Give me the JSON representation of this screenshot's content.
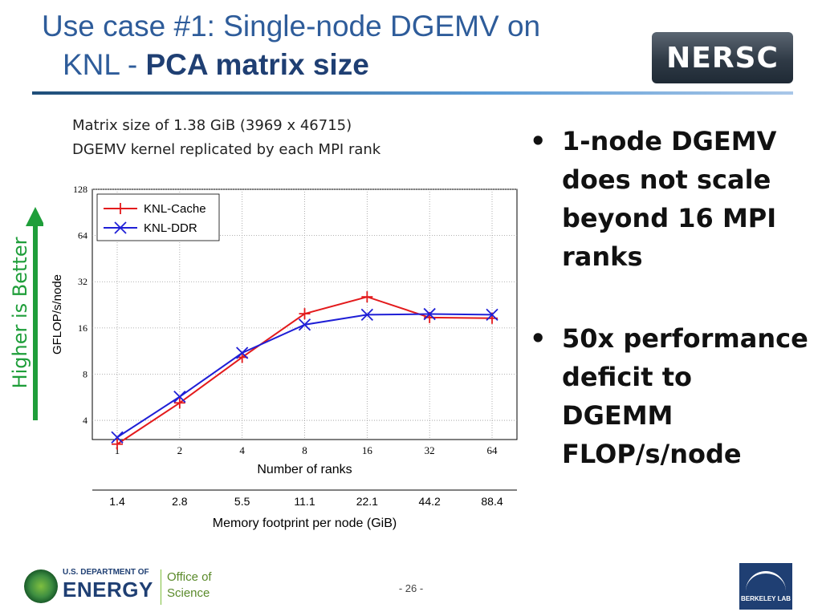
{
  "title": {
    "line1": "Use case #1: Single-node DGEMV on",
    "line2_prefix": "KNL - ",
    "line2_bold": "PCA matrix size"
  },
  "logos": {
    "nersc": "NERSC",
    "doe_department": "U.S. DEPARTMENT OF",
    "doe_energy": "ENERGY",
    "office_line1": "Office of",
    "office_line2": "Science",
    "berkeley_lab": "BERKELEY LAB"
  },
  "caption": {
    "line1": "Matrix size of 1.38 GiB (3969 x 46715)",
    "line2": "DGEMV kernel replicated by each MPI rank"
  },
  "side_label": "Higher is Better",
  "bullets": [
    "1-node DGEMV does not scale beyond 16 MPI ranks",
    "50x performance deficit to DGEMM FLOP/s/node"
  ],
  "bullet_symbol": "•",
  "page_number": "- 26 -",
  "colors": {
    "title": "#2e5c9a",
    "knl_cache": "#e31a1c",
    "knl_ddr": "#1f1fd6",
    "arrow": "#1f9e3a"
  },
  "chart_data": {
    "type": "line",
    "ylabel": "GFLOP/s/node",
    "xlabel": "Number of ranks",
    "x2label": "Memory footprint per node (GiB)",
    "yscale": "log2",
    "ylim": [
      3,
      128
    ],
    "y_ticks": [
      4,
      8,
      16,
      32,
      64,
      128
    ],
    "categories": [
      "1",
      "2",
      "4",
      "8",
      "16",
      "32",
      "64"
    ],
    "secondary_categories": [
      "1.4",
      "2.8",
      "5.5",
      "11.1",
      "22.1",
      "44.2",
      "88.4"
    ],
    "grid": true,
    "legend_position": "top-left",
    "series": [
      {
        "name": "KNL-Cache",
        "marker": "+",
        "values": [
          2.8,
          5.2,
          10.3,
          19.8,
          25.5,
          18.7,
          18.5
        ]
      },
      {
        "name": "KNL-DDR",
        "marker": "x",
        "values": [
          3.1,
          5.7,
          11.0,
          16.8,
          19.5,
          19.7,
          19.5
        ]
      }
    ]
  }
}
